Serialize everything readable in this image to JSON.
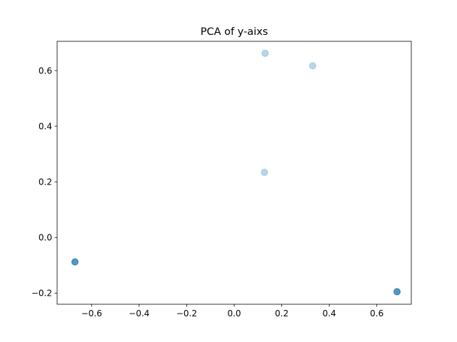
{
  "chart_data": {
    "type": "scatter",
    "title": "PCA of y-aixs",
    "xlabel": "",
    "ylabel": "",
    "xlim": [
      -0.745,
      0.745
    ],
    "ylim": [
      -0.24,
      0.705
    ],
    "grid": false,
    "xticks": [
      -0.6,
      -0.4,
      -0.2,
      0.0,
      0.2,
      0.4,
      0.6
    ],
    "xtick_labels": [
      "−0.6",
      "−0.4",
      "−0.2",
      "0.0",
      "0.2",
      "0.4",
      "0.6"
    ],
    "yticks": [
      -0.2,
      0.0,
      0.2,
      0.4,
      0.6
    ],
    "ytick_labels": [
      "−0.2",
      "0.0",
      "0.2",
      "0.4",
      "0.6"
    ],
    "marker_color": "#1f77b4",
    "marker_alpha": 0.3,
    "points": [
      {
        "x": -0.67,
        "y": -0.088
      },
      {
        "x": -0.67,
        "y": -0.088
      },
      {
        "x": -0.67,
        "y": -0.088
      },
      {
        "x": -0.67,
        "y": -0.088
      },
      {
        "x": 0.685,
        "y": -0.195
      },
      {
        "x": 0.685,
        "y": -0.195
      },
      {
        "x": 0.685,
        "y": -0.195
      },
      {
        "x": 0.685,
        "y": -0.195
      },
      {
        "x": 0.13,
        "y": 0.662
      },
      {
        "x": 0.33,
        "y": 0.617
      },
      {
        "x": 0.127,
        "y": 0.234
      }
    ]
  }
}
